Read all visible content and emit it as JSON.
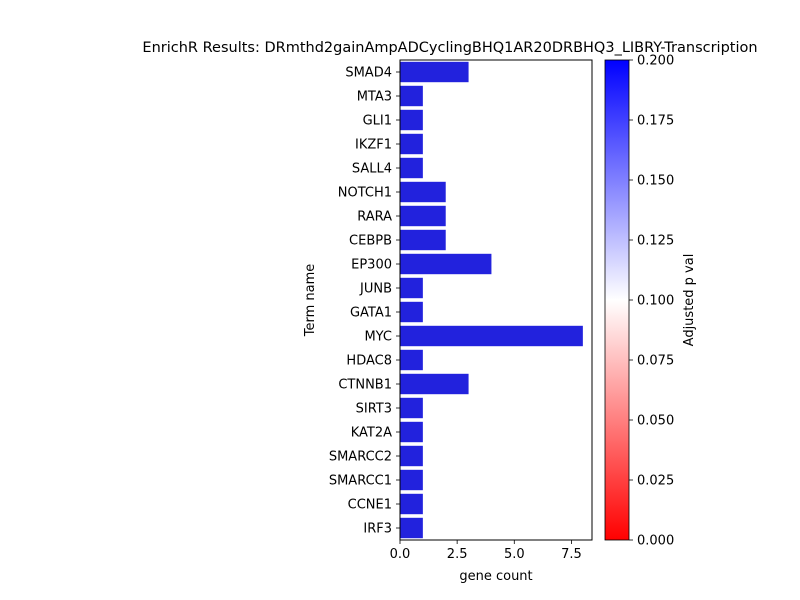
{
  "chart_data": {
    "type": "bar",
    "orientation": "horizontal",
    "title": "EnrichR Results: DRmthd2gainAmpADCyclingBHQ1AR20DRBHQ3_LIBRY-Transcription",
    "xlabel": "gene count",
    "ylabel": "Term name",
    "xlim": [
      0,
      8.4
    ],
    "xticks": [
      0.0,
      2.5,
      5.0,
      7.5
    ],
    "xtick_labels": [
      "0.0",
      "2.5",
      "5.0",
      "7.5"
    ],
    "categories": [
      "SMAD4",
      "MTA3",
      "GLI1",
      "IKZF1",
      "SALL4",
      "NOTCH1",
      "RARA",
      "CEBPB",
      "EP300",
      "JUNB",
      "GATA1",
      "MYC",
      "HDAC8",
      "CTNNB1",
      "SIRT3",
      "KAT2A",
      "SMARCC2",
      "SMARCC1",
      "CCNE1",
      "IRF3"
    ],
    "values": [
      3,
      1,
      1,
      1,
      1,
      2,
      2,
      2,
      4,
      1,
      1,
      8,
      1,
      3,
      1,
      1,
      1,
      1,
      1,
      1
    ],
    "bar_color": "#2222dd",
    "grid": false,
    "colorbar": {
      "label": "Adjusted p val",
      "range": [
        0.0,
        0.2
      ],
      "ticks": [
        0.0,
        0.025,
        0.05,
        0.075,
        0.1,
        0.125,
        0.15,
        0.175,
        0.2
      ],
      "tick_labels": [
        "0.000",
        "0.025",
        "0.050",
        "0.075",
        "0.100",
        "0.125",
        "0.150",
        "0.175",
        "0.200"
      ],
      "colormap": [
        "#ff0000",
        "#ffffff",
        "#0000ff"
      ]
    }
  }
}
